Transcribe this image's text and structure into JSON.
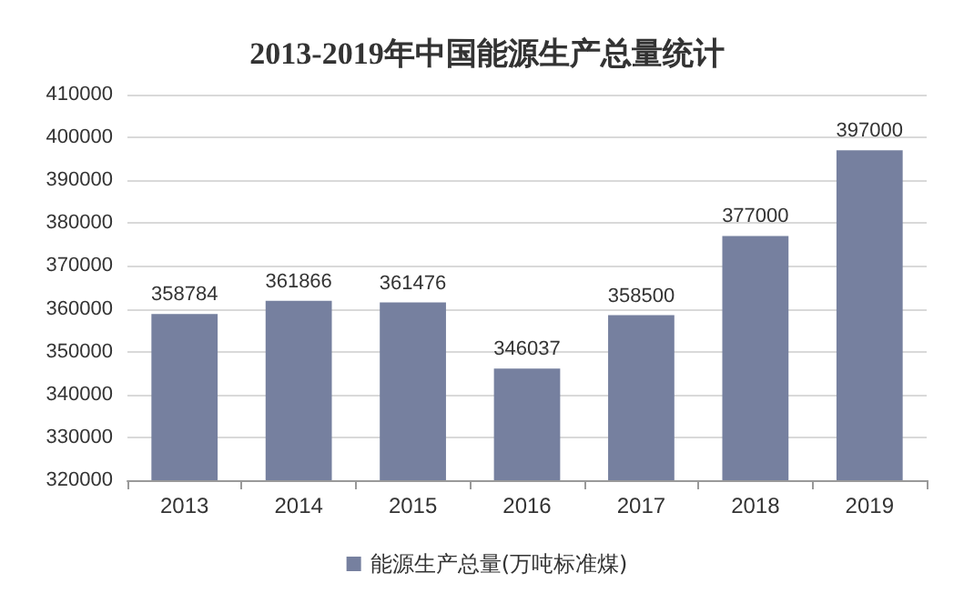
{
  "chart_data": {
    "type": "bar",
    "title": "2013-2019年中国能源生产总量统计",
    "categories": [
      "2013",
      "2014",
      "2015",
      "2016",
      "2017",
      "2018",
      "2019"
    ],
    "series": [
      {
        "name": "能源生产总量(万吨标准煤)",
        "color": "#76809f",
        "values": [
          358784,
          361866,
          361476,
          346037,
          358500,
          377000,
          397000
        ]
      }
    ],
    "ylim": [
      320000,
      410000
    ],
    "yticks": [
      320000,
      330000,
      340000,
      350000,
      360000,
      370000,
      380000,
      390000,
      400000,
      410000
    ],
    "grid": "y",
    "legend": "bottom",
    "data_labels": true
  }
}
